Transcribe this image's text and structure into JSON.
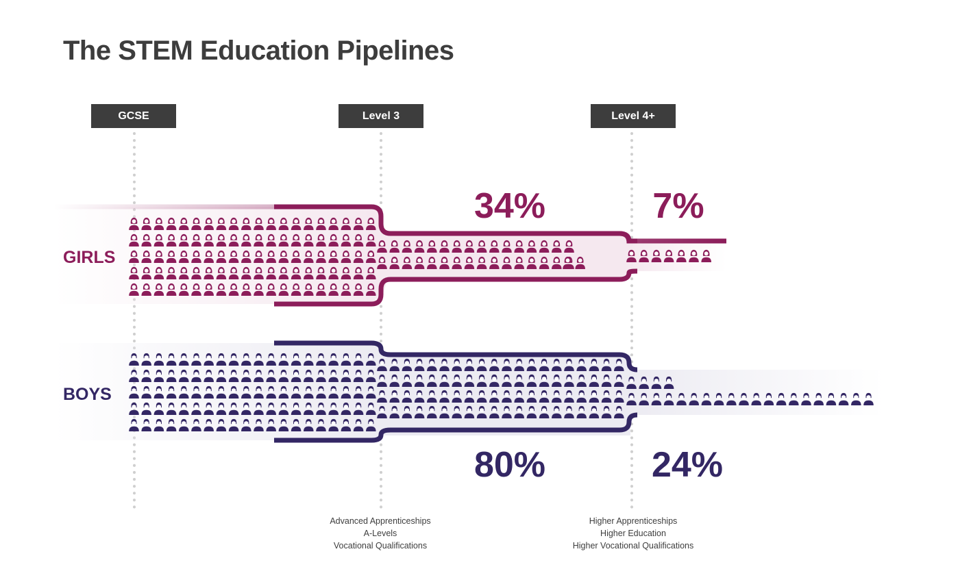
{
  "title": "The STEM Education Pipelines",
  "stages": [
    {
      "label": "GCSE"
    },
    {
      "label": "Level 3",
      "notes": [
        "Advanced Apprenticeships",
        "A-Levels",
        "Vocational Qualifications"
      ]
    },
    {
      "label": "Level 4+",
      "notes": [
        "Higher Apprenticeships",
        "Higher Education",
        "Higher Vocational Qualifications"
      ]
    }
  ],
  "colors": {
    "girls": "#8c1d5a",
    "girls_light": "#f5e8ef",
    "boys": "#332764",
    "boys_light": "#ecebf2",
    "dark": "#3d3d3d",
    "dots": "#cfcfcf"
  },
  "chart_data": {
    "type": "pictogram-pipeline",
    "title": "The STEM Education Pipelines",
    "stages": [
      "GCSE",
      "Level 3",
      "Level 4+"
    ],
    "series": [
      {
        "name": "GIRLS",
        "values": [
          100,
          34,
          7
        ],
        "labels": [
          "",
          "34%",
          "7%"
        ],
        "icon": "female-person-icon",
        "icons_per_stage": [
          100,
          34,
          7
        ]
      },
      {
        "name": "BOYS",
        "values": [
          100,
          80,
          24
        ],
        "labels": [
          "",
          "80%",
          "24%"
        ],
        "icon": "male-person-icon",
        "icons_per_stage": [
          100,
          80,
          24
        ]
      }
    ],
    "unit": "%"
  }
}
